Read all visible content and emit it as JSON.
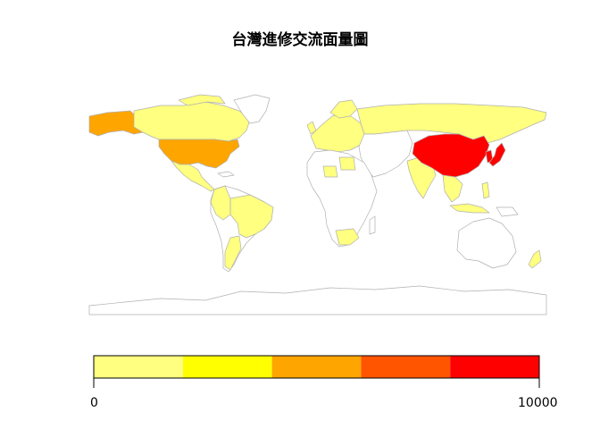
{
  "title": "台灣進修交流面量圖",
  "legend": {
    "min_label": "0",
    "max_label": "10000",
    "bins": [
      "#FFFF80",
      "#FFFF00",
      "#FFA500",
      "#FF5500",
      "#FF0000"
    ]
  },
  "regions": [
    {
      "name": "Canada",
      "color": "#FFFF80"
    },
    {
      "name": "United States",
      "color": "#FFA500"
    },
    {
      "name": "Alaska",
      "color": "#FFA500"
    },
    {
      "name": "Russia",
      "color": "#FFFF80"
    },
    {
      "name": "China",
      "color": "#FF0000"
    },
    {
      "name": "Japan",
      "color": "#FF0000"
    },
    {
      "name": "South Korea",
      "color": "#FF0000"
    },
    {
      "name": "India",
      "color": "#FFFF80"
    },
    {
      "name": "Brazil",
      "color": "#FFFF80"
    },
    {
      "name": "Australia",
      "color": "#FFFFFF"
    },
    {
      "name": "South Africa",
      "color": "#FFFF80"
    },
    {
      "name": "Western Europe",
      "color": "#FFFF80"
    },
    {
      "name": "Southeast Asia",
      "color": "#FFFF80"
    },
    {
      "name": "New Zealand",
      "color": "#FFFF80"
    }
  ]
}
